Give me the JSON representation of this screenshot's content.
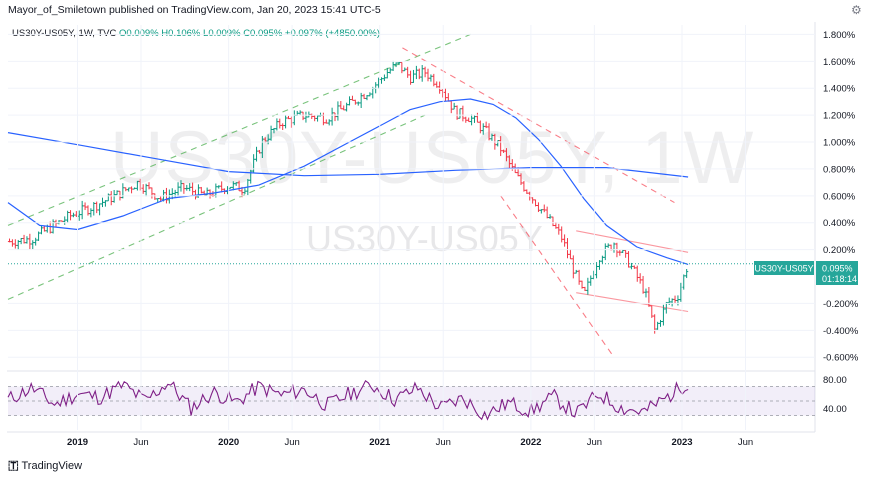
{
  "header": {
    "publisher_line": "Mayor_of_Smiletown published on TradingView.com, Jan 20, 2023 15:41 UTC-5",
    "gear_icon": "gear-icon"
  },
  "legend": {
    "symbol": "US30Y-US05Y, 1W, TVC",
    "open": "O0.009%",
    "high": "H0.106%",
    "low": "L0.009%",
    "close": "C0.095%",
    "change": "+0.097% (+4850.00%)"
  },
  "watermark": {
    "big": "US30Y-US05Y, 1W",
    "small": "US30Y-US05Y"
  },
  "price_tag": {
    "symbol": "US30Y-US05Y",
    "value": "0.095%",
    "countdown": "01:18:14"
  },
  "footer": {
    "brand": "TradingView"
  },
  "colors": {
    "up": "#089981",
    "down": "#f23645",
    "ma": "#2962ff",
    "rsi": "#7e1f86",
    "channel_green": "#4caf50",
    "channel_red": "#f7525f"
  },
  "chart_data": {
    "type": "line",
    "title": "US30Y-US05Y, 1W",
    "price_axis": {
      "ticks": [
        "1.800%",
        "1.600%",
        "1.400%",
        "1.200%",
        "1.000%",
        "0.800%",
        "0.600%",
        "0.400%",
        "0.200%",
        "-0.200%",
        "-0.400%",
        "-0.600%"
      ],
      "tick_values": [
        1.8,
        1.6,
        1.4,
        1.2,
        1.0,
        0.8,
        0.6,
        0.4,
        0.2,
        -0.2,
        -0.4,
        -0.6
      ],
      "range": [
        -0.68,
        1.87
      ]
    },
    "time_axis": {
      "labels": [
        "2019",
        "Jun",
        "2020",
        "Jun",
        "2021",
        "Jun",
        "2022",
        "Jun",
        "2023",
        "Jun"
      ],
      "label_positions": [
        2019.0,
        2019.42,
        2020.0,
        2020.42,
        2021.0,
        2021.42,
        2022.0,
        2022.42,
        2023.0,
        2023.42
      ],
      "range": [
        2018.54,
        2023.88
      ]
    },
    "price_series": {
      "name": "US30Y-US05Y",
      "x": [
        2018.55,
        2018.7,
        2018.8,
        2018.95,
        2019.1,
        2019.25,
        2019.4,
        2019.55,
        2019.7,
        2019.85,
        2020.0,
        2020.1,
        2020.22,
        2020.35,
        2020.5,
        2020.65,
        2020.8,
        2020.95,
        2021.05,
        2021.12,
        2021.2,
        2021.3,
        2021.4,
        2021.5,
        2021.6,
        2021.7,
        2021.8,
        2021.9,
        2022.0,
        2022.1,
        2022.2,
        2022.3,
        2022.35,
        2022.45,
        2022.55,
        2022.65,
        2022.75,
        2022.82,
        2022.9,
        2022.97,
        2023.04
      ],
      "values": [
        0.26,
        0.28,
        0.35,
        0.45,
        0.52,
        0.6,
        0.7,
        0.58,
        0.66,
        0.6,
        0.68,
        0.65,
        1.0,
        1.15,
        1.2,
        1.18,
        1.28,
        1.4,
        1.52,
        1.58,
        1.48,
        1.52,
        1.42,
        1.22,
        1.18,
        1.08,
        0.95,
        0.75,
        0.6,
        0.45,
        0.3,
        0.0,
        -0.15,
        0.15,
        0.25,
        0.1,
        -0.1,
        -0.4,
        -0.2,
        -0.15,
        0.095
      ]
    },
    "moving_average_short": {
      "x": [
        2018.54,
        2018.75,
        2019.0,
        2019.3,
        2019.6,
        2019.9,
        2020.2,
        2020.5,
        2020.8,
        2021.0,
        2021.2,
        2021.4,
        2021.6,
        2021.75,
        2021.9,
        2022.05,
        2022.2,
        2022.35,
        2022.5,
        2022.7,
        2022.9,
        2023.04
      ],
      "values": [
        0.55,
        0.38,
        0.35,
        0.45,
        0.58,
        0.62,
        0.68,
        0.82,
        1.0,
        1.12,
        1.24,
        1.3,
        1.32,
        1.28,
        1.18,
        1.02,
        0.82,
        0.58,
        0.38,
        0.22,
        0.14,
        0.09
      ]
    },
    "moving_average_long": {
      "x": [
        2018.54,
        2019.0,
        2019.5,
        2020.0,
        2020.5,
        2021.0,
        2021.5,
        2022.0,
        2022.5,
        2023.04
      ],
      "values": [
        1.07,
        0.98,
        0.88,
        0.78,
        0.75,
        0.76,
        0.79,
        0.81,
        0.81,
        0.74
      ]
    },
    "trend_lines": [
      {
        "color": "green",
        "style": "dashed",
        "x": [
          2018.54,
          2021.6
        ],
        "values": [
          0.38,
          1.8
        ]
      },
      {
        "color": "green",
        "style": "dashed",
        "x": [
          2018.54,
          2021.3
        ],
        "values": [
          -0.17,
          1.2
        ]
      },
      {
        "color": "red",
        "style": "dashed",
        "x": [
          2021.15,
          2022.95
        ],
        "values": [
          1.7,
          0.55
        ]
      },
      {
        "color": "red",
        "style": "dashed",
        "x": [
          2021.8,
          2022.55
        ],
        "values": [
          0.6,
          -0.6
        ]
      },
      {
        "color": "red",
        "style": "solid",
        "x": [
          2022.3,
          2023.04
        ],
        "values": [
          0.34,
          0.18
        ]
      },
      {
        "color": "red",
        "style": "solid",
        "x": [
          2022.3,
          2023.04
        ],
        "values": [
          -0.12,
          -0.26
        ]
      }
    ],
    "current_value": 0.095,
    "rsi": {
      "ticks": [
        "80.00",
        "40.00"
      ],
      "tick_values": [
        80,
        40
      ],
      "range": [
        10,
        90
      ],
      "band": [
        30,
        70
      ],
      "x": [
        2018.54,
        2018.7,
        2018.85,
        2019.0,
        2019.15,
        2019.3,
        2019.45,
        2019.6,
        2019.75,
        2019.9,
        2020.05,
        2020.2,
        2020.35,
        2020.5,
        2020.65,
        2020.8,
        2020.95,
        2021.1,
        2021.25,
        2021.4,
        2021.55,
        2021.7,
        2021.85,
        2022.0,
        2022.15,
        2022.3,
        2022.45,
        2022.6,
        2022.75,
        2022.9,
        2023.04
      ],
      "values": [
        52,
        68,
        45,
        60,
        55,
        72,
        50,
        76,
        40,
        62,
        48,
        70,
        58,
        66,
        44,
        60,
        72,
        52,
        68,
        40,
        54,
        30,
        48,
        36,
        56,
        32,
        60,
        40,
        35,
        55,
        76
      ]
    }
  }
}
